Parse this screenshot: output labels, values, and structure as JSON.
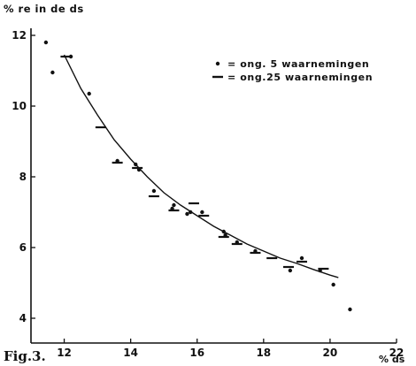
{
  "chart_data": {
    "type": "scatter",
    "figure_label": "Fig.3.",
    "ylabel": "% re in de ds",
    "xlabel": "% ds",
    "xlim": [
      11,
      22
    ],
    "ylim": [
      3.3,
      12.2
    ],
    "xticks": [
      "12",
      "14",
      "16",
      "18",
      "20",
      "22"
    ],
    "yticks": [
      "4",
      "6",
      "8",
      "10",
      "12"
    ],
    "grid": false,
    "legend": {
      "placement": "top-right",
      "entries": [
        {
          "symbol": "dot",
          "label": "= ong. 5 waarnemingen"
        },
        {
          "symbol": "dash",
          "label": "= ong.25 waarnemingen"
        }
      ]
    },
    "series": [
      {
        "marker": "dot",
        "points": [
          [
            11.45,
            11.8
          ],
          [
            11.65,
            10.95
          ],
          [
            12.2,
            11.4
          ],
          [
            12.75,
            10.35
          ],
          [
            13.6,
            8.45
          ],
          [
            14.15,
            8.35
          ],
          [
            14.25,
            8.2
          ],
          [
            14.7,
            7.6
          ],
          [
            15.25,
            7.1
          ],
          [
            15.3,
            7.2
          ],
          [
            15.7,
            6.95
          ],
          [
            15.8,
            7.0
          ],
          [
            16.15,
            7.0
          ],
          [
            16.8,
            6.45
          ],
          [
            16.85,
            6.35
          ],
          [
            17.2,
            6.15
          ],
          [
            17.75,
            5.9
          ],
          [
            18.8,
            5.35
          ],
          [
            19.15,
            5.7
          ],
          [
            19.7,
            5.35
          ],
          [
            20.1,
            4.95
          ],
          [
            20.6,
            4.25
          ]
        ]
      },
      {
        "marker": "dash",
        "points": [
          [
            12.05,
            11.4
          ],
          [
            13.1,
            9.4
          ],
          [
            13.6,
            8.4
          ],
          [
            14.2,
            8.25
          ],
          [
            14.7,
            7.45
          ],
          [
            15.3,
            7.05
          ],
          [
            15.9,
            7.25
          ],
          [
            16.2,
            6.9
          ],
          [
            16.8,
            6.3
          ],
          [
            17.2,
            6.1
          ],
          [
            17.75,
            5.85
          ],
          [
            18.25,
            5.7
          ],
          [
            18.75,
            5.45
          ],
          [
            19.15,
            5.6
          ],
          [
            19.8,
            5.4
          ]
        ]
      }
    ],
    "trend_curve": {
      "x": [
        12.0,
        12.5,
        13.0,
        13.5,
        14.0,
        14.5,
        15.0,
        15.5,
        16.0,
        16.5,
        17.0,
        17.5,
        18.0,
        18.5,
        19.0,
        19.5,
        20.0,
        20.25
      ],
      "y": [
        11.45,
        10.5,
        9.75,
        9.05,
        8.5,
        8.0,
        7.55,
        7.2,
        6.9,
        6.6,
        6.35,
        6.1,
        5.9,
        5.7,
        5.55,
        5.38,
        5.22,
        5.15
      ]
    }
  }
}
